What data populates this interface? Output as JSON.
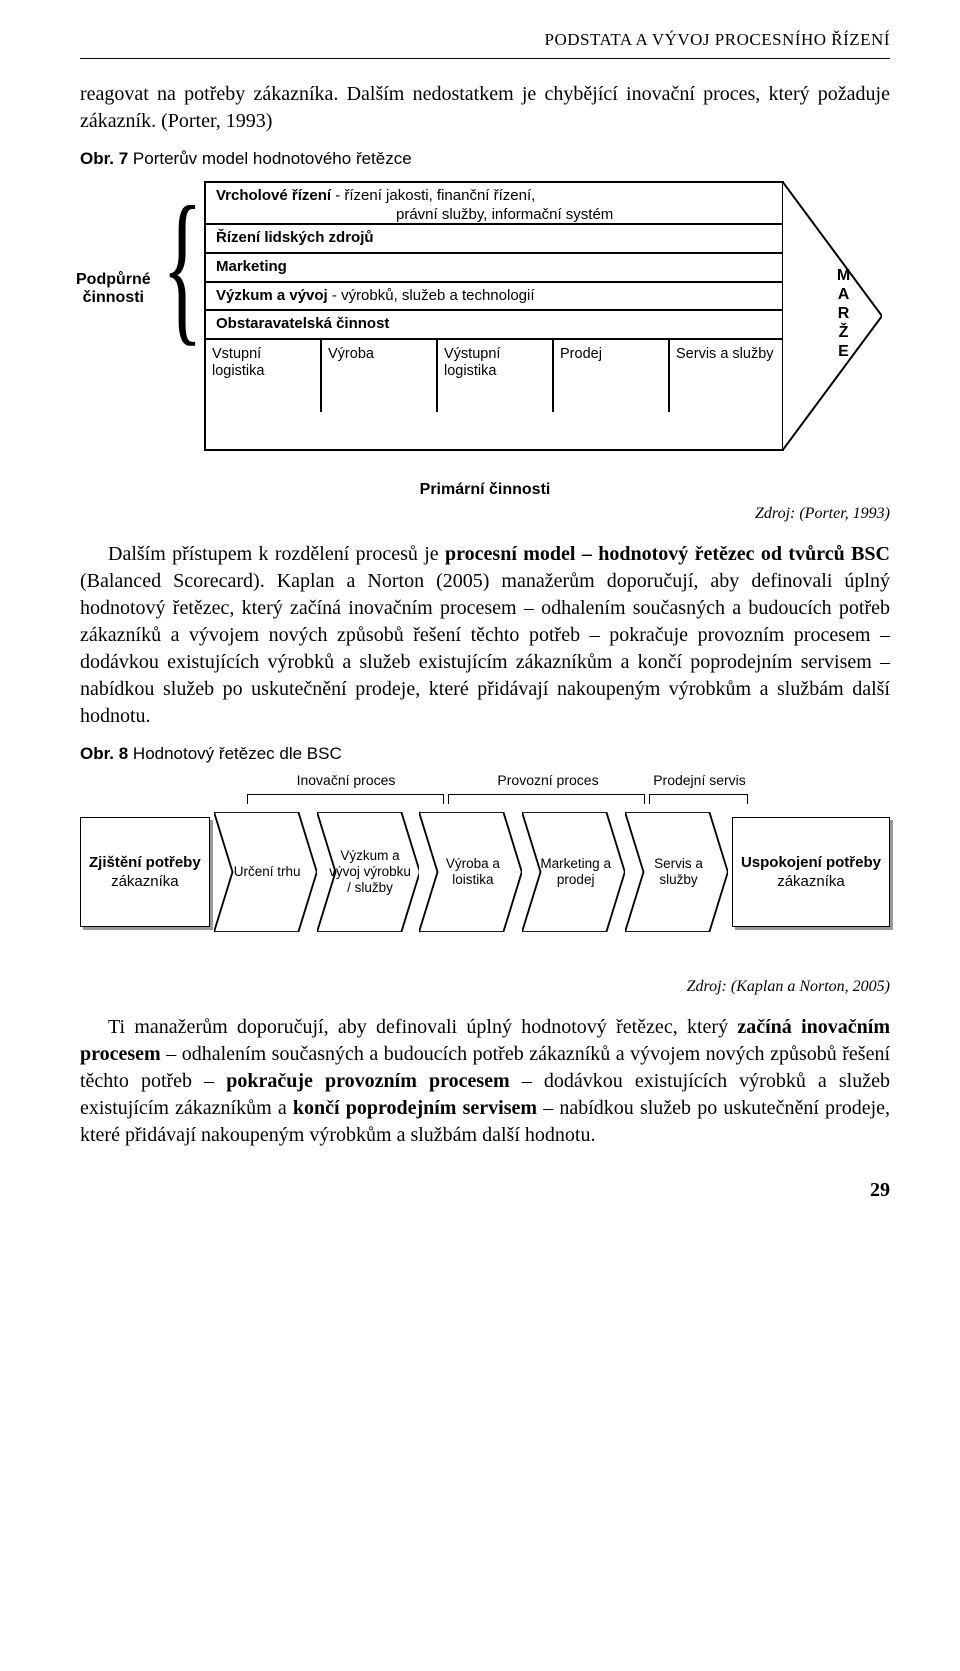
{
  "header": "PODSTATA A VÝVOJ PROCESNÍHO ŘÍZENÍ",
  "para1": "reagovat na potřeby zákazníka. Dalším nedostatkem je chybějící inovační proces, který požaduje zákazník. (Porter, 1993)",
  "fig7_caption_bold": "Obr. 7",
  "fig7_caption_rest": " Porterův model hodnotového řetězce",
  "porter": {
    "support_label_1": "Podpůrné",
    "support_label_2": "činnosti",
    "row1_bold": "Vrcholové řízení",
    "row1_rest": " - řízení jakosti, finanční řízení,",
    "row1_line2": "právní služby, informační systém",
    "row2": "Řízení lidských zdrojů",
    "row3": "Marketing",
    "row4_bold": "Výzkum a vývoj",
    "row4_rest": " - výrobků, služeb a technologií",
    "row5": "Obstaravatelská činnost",
    "primary": [
      "Vstupní logistika",
      "Výroba",
      "Výstupní logistika",
      "Prodej",
      "Servis a služby"
    ],
    "primary_caption": "Primární činnosti",
    "marze": "MARŽE"
  },
  "source1": "Zdroj: (Porter, 1993)",
  "para2_pre": "Dalším přístupem k rozdělení procesů je ",
  "para2_bold": "procesní model – hodnotový řetězec od tvůrců BSC",
  "para2_rest": " (Balanced Scorecard). Kaplan a Norton (2005) manažerům doporučují, aby definovali úplný hodnotový řetězec, který začíná inovačním procesem – odhalením současných a budoucích potřeb zákazníků a vývojem nových způsobů řešení těchto potřeb – pokračuje provozním procesem – dodávkou existujících výrobků a služeb existujícím zákazníkům a končí poprodejním servisem – nabídkou služeb po uskutečnění prodeje, které přidávají nakoupeným výrobkům a službám další hodnotu.",
  "fig8_caption_bold": "Obr. 8",
  "fig8_caption_rest": " Hodnotový řetězec dle BSC",
  "bsc": {
    "top_labels": [
      "Inovační proces",
      "Provozní proces",
      "Prodejní servis"
    ],
    "group_sizes": [
      2,
      2,
      1
    ],
    "left_box_bold": "Zjištění potřeby",
    "left_box_rest": "zákazníka",
    "right_box_bold": "Uspokojení potřeby",
    "right_box_rest": "zákazníka",
    "chevrons": [
      "Určení trhu",
      "Výzkum a vývoj výrobku / služby",
      "Výroba a loistika",
      "Marketing a prodej",
      "Servis a služby"
    ]
  },
  "source2": "Zdroj: (Kaplan a Norton, 2005)",
  "para3_parts": [
    {
      "t": "Ti manažerům doporučují, aby definovali úplný hodnotový řetězec, který ",
      "b": false
    },
    {
      "t": "začíná inovačním procesem",
      "b": true
    },
    {
      "t": " – odhalením současných a budoucích potřeb zákazníků a vývojem nových způsobů řešení těchto potřeb – ",
      "b": false
    },
    {
      "t": "pokračuje provozním procesem",
      "b": true
    },
    {
      "t": " – dodávkou existujících výrobků a služeb existujícím zákazníkům a ",
      "b": false
    },
    {
      "t": "končí poprodejním servisem",
      "b": true
    },
    {
      "t": " – nabídkou služeb po uskutečnění prodeje, které přidávají nakoupeným výrobkům a službám další hodnotu.",
      "b": false
    }
  ],
  "page_num": "29",
  "colors": {
    "text": "#000000",
    "bg": "#ffffff",
    "shadow": "#999999"
  }
}
